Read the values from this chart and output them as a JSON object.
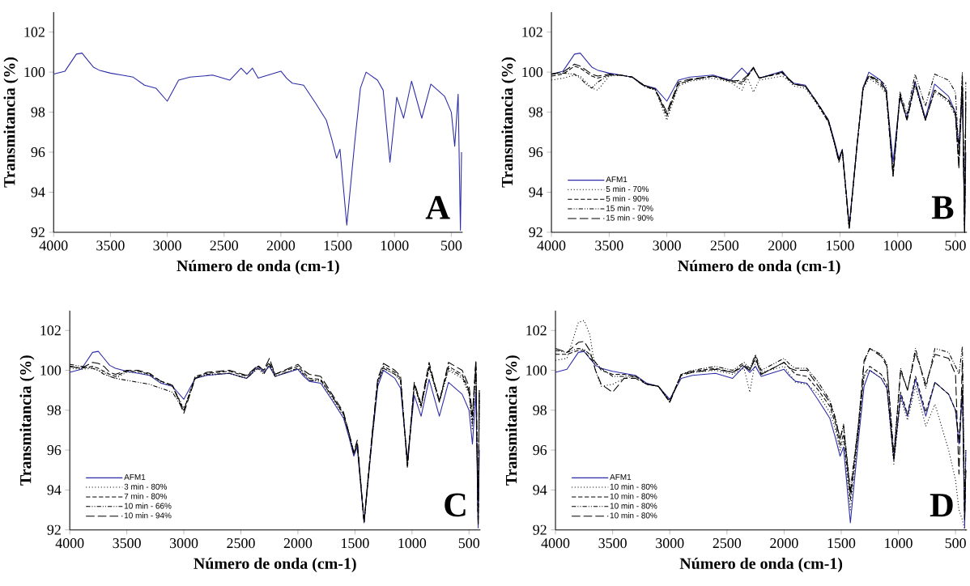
{
  "chart_data": [
    {
      "type": "line",
      "xlabel": "Número de onda (cm-1)",
      "ylabel": "Transmitancia (%)",
      "annotations": [
        "A"
      ],
      "xlim": [
        4000,
        400
      ],
      "ylim": [
        92,
        103
      ],
      "xticks": [
        4000,
        3500,
        3000,
        2500,
        2000,
        1500,
        1000,
        500
      ],
      "yticks": [
        92,
        94,
        96,
        98,
        100,
        102
      ],
      "x": [
        4000,
        3900,
        3800,
        3750,
        3700,
        3650,
        3600,
        3500,
        3400,
        3300,
        3200,
        3100,
        3000,
        2900,
        2800,
        2600,
        2450,
        2350,
        2300,
        2250,
        2200,
        2000,
        1950,
        1900,
        1800,
        1700,
        1600,
        1550,
        1510,
        1480,
        1420,
        1350,
        1300,
        1250,
        1150,
        1100,
        1040,
        980,
        920,
        850,
        760,
        680,
        560,
        500,
        470,
        440,
        420,
        410
      ],
      "series": [
        {
          "color": "#2b2ba8",
          "line_style": "solid",
          "values": [
            99.9,
            100.05,
            100.9,
            100.95,
            100.6,
            100.25,
            100.1,
            99.95,
            99.85,
            99.75,
            99.35,
            99.2,
            98.55,
            99.6,
            99.75,
            99.85,
            99.6,
            100.2,
            99.9,
            100.2,
            99.7,
            100.05,
            99.7,
            99.45,
            99.35,
            98.5,
            97.6,
            96.6,
            95.7,
            96.15,
            92.35,
            96.5,
            99.2,
            100.0,
            99.6,
            99.1,
            95.5,
            98.75,
            97.7,
            99.55,
            97.7,
            99.4,
            98.8,
            98.0,
            96.3,
            98.9,
            92.1,
            96.0
          ]
        }
      ]
    },
    {
      "type": "line",
      "xlabel": "Número de onda (cm-1)",
      "ylabel": "Transmitancia (%)",
      "annotations": [
        "B"
      ],
      "legend": "bottom left",
      "xlim": [
        4000,
        400
      ],
      "ylim": [
        92,
        103
      ],
      "xticks": [
        4000,
        3500,
        3000,
        2500,
        2000,
        1500,
        1000,
        500
      ],
      "yticks": [
        92,
        94,
        96,
        98,
        100,
        102
      ],
      "x": [
        4000,
        3900,
        3800,
        3750,
        3700,
        3650,
        3600,
        3500,
        3400,
        3300,
        3200,
        3100,
        3000,
        2900,
        2800,
        2600,
        2450,
        2350,
        2300,
        2250,
        2200,
        2000,
        1950,
        1900,
        1800,
        1700,
        1600,
        1550,
        1510,
        1480,
        1420,
        1350,
        1300,
        1250,
        1150,
        1100,
        1040,
        980,
        920,
        850,
        760,
        680,
        560,
        500,
        470,
        440,
        420,
        410
      ],
      "series": [
        {
          "name": "AFM1",
          "color": "#2b2ba8",
          "line_style": "solid",
          "values": [
            99.9,
            100.05,
            100.9,
            100.95,
            100.6,
            100.25,
            100.1,
            99.95,
            99.85,
            99.75,
            99.35,
            99.2,
            98.55,
            99.6,
            99.75,
            99.85,
            99.6,
            100.2,
            99.9,
            100.2,
            99.7,
            100.05,
            99.7,
            99.45,
            99.35,
            98.5,
            97.6,
            96.6,
            95.7,
            96.15,
            92.35,
            96.5,
            99.2,
            100.0,
            99.6,
            99.1,
            95.5,
            98.75,
            97.7,
            99.55,
            97.7,
            99.4,
            98.8,
            98.0,
            96.3,
            98.9,
            92.1,
            96.0
          ]
        },
        {
          "name": "5 min - 70%",
          "color": "#000000",
          "line_style": "dotted",
          "values": [
            99.6,
            99.7,
            99.85,
            99.8,
            99.5,
            99.2,
            99.1,
            99.8,
            99.85,
            99.75,
            99.3,
            99.1,
            97.6,
            99.3,
            99.55,
            99.7,
            99.5,
            99.1,
            99.7,
            99.0,
            99.6,
            99.8,
            99.6,
            99.3,
            99.2,
            98.4,
            97.5,
            96.5,
            95.6,
            96.0,
            92.2,
            96.4,
            99.1,
            99.7,
            99.3,
            98.9,
            94.9,
            98.9,
            97.6,
            99.3,
            97.6,
            99.0,
            98.5,
            97.8,
            95.2,
            99.6,
            92.0,
            98.0
          ]
        },
        {
          "name": "5 min - 90%",
          "color": "#000000",
          "line_style": "dashed",
          "values": [
            99.8,
            99.9,
            100.3,
            100.2,
            100.0,
            99.8,
            99.7,
            99.85,
            99.85,
            99.75,
            99.35,
            99.15,
            97.8,
            99.4,
            99.6,
            99.8,
            99.55,
            99.4,
            99.8,
            100.2,
            99.7,
            99.95,
            99.65,
            99.4,
            99.3,
            98.45,
            97.5,
            96.5,
            95.6,
            96.1,
            92.2,
            96.5,
            99.2,
            99.8,
            99.4,
            99.0,
            94.8,
            98.8,
            97.6,
            99.4,
            97.6,
            99.1,
            98.6,
            98.0,
            95.5,
            99.8,
            92.0,
            99.0
          ]
        },
        {
          "name": "15 min - 70%",
          "color": "#000000",
          "line_style": "dashdotdot",
          "values": [
            99.9,
            99.95,
            99.9,
            99.7,
            99.4,
            99.2,
            99.5,
            99.85,
            99.85,
            99.75,
            99.3,
            99.1,
            97.9,
            99.4,
            99.6,
            99.8,
            99.6,
            99.5,
            99.8,
            100.2,
            99.7,
            100.0,
            99.7,
            99.4,
            99.3,
            98.5,
            97.6,
            96.5,
            95.6,
            96.1,
            92.2,
            96.5,
            99.3,
            99.8,
            99.6,
            99.3,
            95.0,
            99.0,
            97.9,
            99.9,
            98.3,
            99.9,
            99.6,
            99.0,
            96.0,
            100.0,
            92.0,
            99.5
          ]
        },
        {
          "name": "15 min - 90%",
          "color": "#000000",
          "line_style": "longdash",
          "values": [
            99.9,
            100.0,
            100.4,
            100.3,
            100.1,
            99.9,
            99.8,
            99.9,
            99.85,
            99.75,
            99.35,
            99.15,
            98.0,
            99.5,
            99.65,
            99.8,
            99.55,
            99.6,
            99.85,
            100.25,
            99.7,
            100.0,
            99.7,
            99.4,
            99.3,
            98.5,
            97.6,
            96.5,
            95.5,
            96.1,
            92.2,
            96.5,
            99.2,
            99.85,
            99.5,
            99.1,
            94.8,
            98.9,
            97.6,
            99.5,
            97.6,
            99.1,
            98.6,
            97.9,
            95.2,
            99.6,
            92.1,
            98.5
          ]
        }
      ]
    },
    {
      "type": "line",
      "xlabel": "Número de onda (cm-1)",
      "ylabel": "Transmitancia (%)",
      "annotations": [
        "C"
      ],
      "legend": "bottom left",
      "xlim": [
        4000,
        400
      ],
      "ylim": [
        92,
        103
      ],
      "xticks": [
        4000,
        3500,
        3000,
        2500,
        2000,
        1500,
        1000,
        500
      ],
      "yticks": [
        92,
        94,
        96,
        98,
        100,
        102
      ],
      "x": [
        4000,
        3900,
        3800,
        3750,
        3700,
        3650,
        3600,
        3500,
        3400,
        3300,
        3200,
        3100,
        3000,
        2900,
        2800,
        2600,
        2450,
        2350,
        2300,
        2250,
        2200,
        2000,
        1950,
        1900,
        1800,
        1700,
        1600,
        1550,
        1510,
        1480,
        1420,
        1350,
        1300,
        1250,
        1150,
        1100,
        1040,
        980,
        920,
        850,
        760,
        680,
        560,
        500,
        470,
        440,
        420,
        410
      ],
      "series": [
        {
          "name": "AFM1",
          "color": "#2b2ba8",
          "line_style": "solid",
          "values": [
            99.9,
            100.05,
            100.9,
            100.95,
            100.6,
            100.25,
            100.1,
            99.95,
            99.85,
            99.75,
            99.35,
            99.2,
            98.55,
            99.6,
            99.75,
            99.85,
            99.6,
            100.2,
            99.9,
            100.2,
            99.7,
            100.05,
            99.7,
            99.45,
            99.35,
            98.5,
            97.6,
            96.6,
            95.7,
            96.15,
            92.35,
            96.5,
            99.2,
            100.0,
            99.6,
            99.1,
            95.5,
            98.75,
            97.7,
            99.55,
            97.7,
            99.4,
            98.8,
            98.0,
            96.3,
            98.9,
            92.1,
            96.0
          ]
        },
        {
          "name": "3 min - 80%",
          "color": "#000000",
          "line_style": "dotted",
          "values": [
            100.1,
            100.05,
            100.1,
            100.0,
            99.9,
            99.7,
            99.6,
            99.9,
            99.9,
            99.75,
            99.4,
            99.2,
            98.1,
            99.6,
            99.75,
            99.85,
            99.6,
            100.1,
            99.9,
            100.3,
            99.7,
            100.1,
            99.8,
            99.5,
            99.45,
            98.6,
            97.7,
            96.7,
            95.8,
            96.3,
            92.4,
            96.6,
            99.4,
            100.1,
            99.8,
            99.5,
            95.3,
            99.2,
            98.1,
            100.1,
            98.4,
            100.0,
            99.6,
            98.8,
            97.0,
            100.3,
            92.3,
            98.5
          ]
        },
        {
          "name": "7 min - 80%",
          "color": "#000000",
          "line_style": "dashed",
          "values": [
            100.2,
            100.1,
            100.2,
            100.1,
            99.95,
            99.8,
            99.7,
            99.95,
            99.95,
            99.8,
            99.45,
            99.25,
            98.0,
            99.7,
            99.85,
            99.95,
            99.7,
            100.2,
            100.0,
            100.4,
            99.8,
            100.2,
            99.9,
            99.6,
            99.55,
            98.7,
            97.8,
            96.8,
            95.8,
            96.4,
            92.4,
            96.7,
            99.5,
            100.2,
            99.9,
            99.6,
            95.1,
            99.3,
            98.2,
            100.2,
            98.5,
            100.2,
            99.8,
            99.0,
            97.5,
            100.4,
            92.3,
            99.0
          ]
        },
        {
          "name": "10 min - 66%",
          "color": "#000000",
          "line_style": "dashdotdot",
          "values": [
            100.3,
            100.2,
            100.1,
            100.0,
            99.8,
            99.7,
            99.6,
            99.5,
            99.4,
            99.3,
            99.1,
            98.9,
            98.0,
            99.6,
            99.8,
            99.85,
            99.6,
            100.1,
            99.8,
            100.3,
            99.7,
            100.1,
            99.8,
            99.5,
            99.5,
            98.7,
            97.8,
            96.8,
            95.8,
            96.3,
            92.4,
            96.6,
            99.4,
            100.1,
            99.8,
            99.5,
            95.3,
            99.3,
            98.2,
            100.2,
            98.5,
            100.1,
            99.7,
            98.9,
            97.3,
            100.3,
            92.3,
            98.8
          ]
        },
        {
          "name": "10 min - 94%",
          "color": "#000000",
          "line_style": "longdash",
          "values": [
            100.2,
            100.1,
            100.4,
            100.35,
            100.2,
            99.9,
            99.8,
            100.0,
            100.0,
            99.85,
            99.45,
            99.25,
            97.85,
            99.6,
            99.9,
            100.0,
            99.75,
            100.25,
            100.0,
            100.6,
            99.8,
            100.3,
            100.0,
            99.8,
            99.7,
            98.8,
            97.9,
            96.8,
            95.9,
            96.5,
            92.4,
            96.8,
            99.6,
            100.35,
            100.0,
            99.7,
            95.2,
            99.4,
            98.3,
            100.4,
            98.4,
            100.4,
            100.0,
            99.2,
            97.8,
            100.5,
            92.2,
            99.0
          ]
        }
      ]
    },
    {
      "type": "line",
      "xlabel": "Número de onda (cm-1)",
      "ylabel": "Transmitancia (%)",
      "annotations": [
        "D"
      ],
      "legend": "bottom left",
      "xlim": [
        4000,
        400
      ],
      "ylim": [
        92,
        103
      ],
      "xticks": [
        4000,
        3500,
        3000,
        2500,
        2000,
        1500,
        1000,
        500
      ],
      "yticks": [
        92,
        94,
        96,
        98,
        100,
        102
      ],
      "x": [
        4000,
        3900,
        3800,
        3750,
        3700,
        3650,
        3600,
        3500,
        3400,
        3300,
        3200,
        3100,
        3000,
        2900,
        2800,
        2600,
        2450,
        2350,
        2300,
        2250,
        2200,
        2000,
        1950,
        1900,
        1800,
        1700,
        1600,
        1550,
        1510,
        1480,
        1420,
        1350,
        1300,
        1250,
        1150,
        1100,
        1040,
        980,
        920,
        850,
        760,
        680,
        560,
        500,
        470,
        440,
        420,
        410
      ],
      "series": [
        {
          "name": "AFM1",
          "color": "#2b2ba8",
          "line_style": "solid",
          "values": [
            99.9,
            100.05,
            100.9,
            100.95,
            100.6,
            100.25,
            100.1,
            99.95,
            99.85,
            99.75,
            99.35,
            99.2,
            98.55,
            99.6,
            99.75,
            99.85,
            99.6,
            100.2,
            99.9,
            100.2,
            99.7,
            100.05,
            99.7,
            99.45,
            99.35,
            98.5,
            97.6,
            96.6,
            95.7,
            96.15,
            92.35,
            96.5,
            99.2,
            100.0,
            99.6,
            99.1,
            95.5,
            98.75,
            97.7,
            99.55,
            97.7,
            99.4,
            98.8,
            98.0,
            96.3,
            98.9,
            92.1,
            96.0
          ]
        },
        {
          "name": "10 min - 80%",
          "color": "#000000",
          "line_style": "dotted",
          "values": [
            100.5,
            100.6,
            102.4,
            102.5,
            101.8,
            100.0,
            99.2,
            99.3,
            99.6,
            99.7,
            99.3,
            99.2,
            98.5,
            99.8,
            99.9,
            100.0,
            99.8,
            100.1,
            98.9,
            100.5,
            99.9,
            100.2,
            99.8,
            99.4,
            99.3,
            98.8,
            97.9,
            97.0,
            96.0,
            96.5,
            93.0,
            96.8,
            99.7,
            100.0,
            99.6,
            99.1,
            95.3,
            98.6,
            97.5,
            99.2,
            97.2,
            98.3,
            96.0,
            94.5,
            93.0,
            92.5,
            92.0,
            92.0
          ]
        },
        {
          "name": "10 min - 80%",
          "color": "#000000",
          "line_style": "dashed",
          "values": [
            100.8,
            100.8,
            101.0,
            101.0,
            100.6,
            100.4,
            100.0,
            99.8,
            99.8,
            99.7,
            99.3,
            99.2,
            98.45,
            99.8,
            99.95,
            100.1,
            99.9,
            100.3,
            100.0,
            100.7,
            99.8,
            100.4,
            100.1,
            99.8,
            99.7,
            99.0,
            98.2,
            97.3,
            96.2,
            96.8,
            93.5,
            97.0,
            99.8,
            100.2,
            99.8,
            99.3,
            95.5,
            98.9,
            97.8,
            99.7,
            97.9,
            99.4,
            98.8,
            98.0,
            96.5,
            99.0,
            92.5,
            95.0
          ]
        },
        {
          "name": "10 min - 80%",
          "color": "#000000",
          "line_style": "dashdotdot",
          "values": [
            101.0,
            100.9,
            101.1,
            101.05,
            100.8,
            100.4,
            100.1,
            99.7,
            99.7,
            99.7,
            99.3,
            99.2,
            98.4,
            99.8,
            100.0,
            100.2,
            100.0,
            100.4,
            100.1,
            100.8,
            100.0,
            100.6,
            100.3,
            100.1,
            100.1,
            99.4,
            98.5,
            97.6,
            96.5,
            97.3,
            94.0,
            97.3,
            100.4,
            101.1,
            100.8,
            100.3,
            95.8,
            100.1,
            99.0,
            101.1,
            99.1,
            101.1,
            100.9,
            100.2,
            99.8,
            101.2,
            93.0,
            96.0
          ]
        },
        {
          "name": "10 min - 80%",
          "color": "#000000",
          "line_style": "longdash",
          "values": [
            101.1,
            100.9,
            101.4,
            101.45,
            101.0,
            100.0,
            99.3,
            98.9,
            99.6,
            99.6,
            99.3,
            99.2,
            98.4,
            99.75,
            99.9,
            100.05,
            99.9,
            100.2,
            100.0,
            100.6,
            99.8,
            100.4,
            100.1,
            100.0,
            100.0,
            99.2,
            98.4,
            97.5,
            96.6,
            97.2,
            93.8,
            97.2,
            100.5,
            101.1,
            100.7,
            100.2,
            95.6,
            100.0,
            99.0,
            100.9,
            99.3,
            100.8,
            100.6,
            99.8,
            94.8,
            100.5,
            92.5,
            95.0
          ]
        }
      ]
    }
  ]
}
